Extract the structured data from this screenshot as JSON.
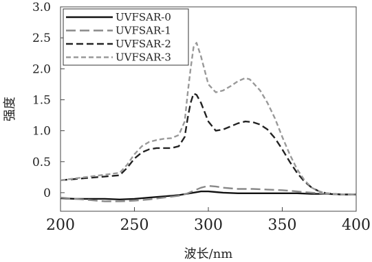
{
  "chart_data": {
    "type": "line",
    "title": "",
    "xlabel": "波长/nm",
    "ylabel": "强度",
    "xlim": [
      200,
      400
    ],
    "ylim": [
      -0.3,
      3.0
    ],
    "xticks": [
      "200",
      "250",
      "300",
      "350",
      "400"
    ],
    "yticks": [
      "3.0",
      "2.5",
      "2.0",
      "1.5",
      "1.0",
      "0.5",
      "0"
    ],
    "grid": false,
    "legend_position": "top-left",
    "series": [
      {
        "name": "UVFSAR-0",
        "color": "#111111",
        "dash": "solid",
        "x": [
          200,
          210,
          220,
          230,
          240,
          250,
          260,
          270,
          280,
          285,
          290,
          295,
          300,
          305,
          310,
          320,
          330,
          340,
          350,
          360,
          370,
          380,
          390,
          400
        ],
        "y": [
          -0.09,
          -0.1,
          -0.1,
          -0.1,
          -0.11,
          -0.1,
          -0.08,
          -0.06,
          -0.04,
          -0.02,
          0.0,
          0.02,
          0.02,
          0.01,
          0.0,
          -0.01,
          -0.01,
          -0.01,
          -0.01,
          -0.01,
          -0.02,
          -0.02,
          -0.03,
          -0.03
        ]
      },
      {
        "name": "UVFSAR-1",
        "color": "#888888",
        "dash": "long-dash",
        "x": [
          200,
          210,
          220,
          230,
          240,
          250,
          260,
          270,
          280,
          285,
          290,
          295,
          300,
          305,
          310,
          320,
          330,
          340,
          350,
          360,
          370,
          380,
          390,
          400
        ],
        "y": [
          -0.08,
          -0.1,
          -0.12,
          -0.14,
          -0.14,
          -0.13,
          -0.11,
          -0.08,
          -0.05,
          -0.02,
          0.03,
          0.08,
          0.11,
          0.1,
          0.08,
          0.06,
          0.06,
          0.05,
          0.04,
          0.02,
          0.0,
          -0.02,
          -0.03,
          -0.03
        ]
      },
      {
        "name": "UVFSAR-2",
        "color": "#222222",
        "dash": "medium-dash",
        "x": [
          200,
          210,
          220,
          230,
          240,
          245,
          250,
          255,
          260,
          265,
          270,
          275,
          280,
          284,
          286,
          288,
          290,
          292,
          295,
          300,
          305,
          310,
          315,
          320,
          325,
          330,
          335,
          340,
          345,
          350,
          355,
          360,
          365,
          370,
          375,
          380,
          385,
          390,
          395,
          400
        ],
        "y": [
          0.2,
          0.22,
          0.24,
          0.26,
          0.28,
          0.4,
          0.55,
          0.65,
          0.7,
          0.72,
          0.72,
          0.72,
          0.75,
          0.9,
          1.2,
          1.45,
          1.6,
          1.58,
          1.45,
          1.15,
          1.0,
          1.02,
          1.07,
          1.12,
          1.15,
          1.14,
          1.1,
          1.02,
          0.88,
          0.7,
          0.5,
          0.32,
          0.18,
          0.08,
          0.02,
          -0.01,
          -0.02,
          -0.03,
          -0.03,
          -0.03
        ]
      },
      {
        "name": "UVFSAR-3",
        "color": "#999999",
        "dash": "short-dash",
        "x": [
          200,
          210,
          220,
          230,
          240,
          245,
          250,
          255,
          260,
          265,
          270,
          275,
          280,
          284,
          286,
          288,
          290,
          292,
          295,
          300,
          305,
          310,
          315,
          320,
          325,
          328,
          330,
          335,
          340,
          345,
          350,
          355,
          360,
          365,
          370,
          375,
          380,
          385,
          390,
          395,
          400
        ],
        "y": [
          0.2,
          0.23,
          0.26,
          0.29,
          0.32,
          0.45,
          0.62,
          0.75,
          0.82,
          0.85,
          0.87,
          0.88,
          0.93,
          1.15,
          1.6,
          2.0,
          2.35,
          2.42,
          2.2,
          1.75,
          1.62,
          1.65,
          1.72,
          1.8,
          1.85,
          1.83,
          1.78,
          1.65,
          1.45,
          1.2,
          0.9,
          0.62,
          0.38,
          0.2,
          0.08,
          0.02,
          -0.01,
          -0.02,
          -0.03,
          -0.03,
          -0.03
        ]
      }
    ]
  }
}
